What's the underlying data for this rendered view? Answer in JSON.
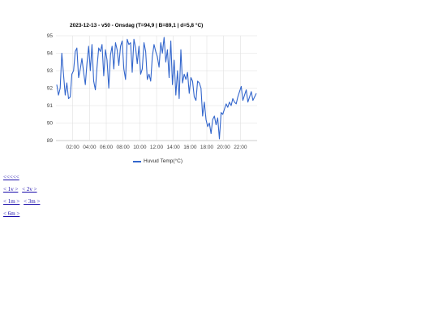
{
  "chart_data": {
    "type": "line",
    "title": "2023-12-13 - v50 - Onsdag (T=94,9 | B=89,1 | d=5,8 °C)",
    "xlabel": "",
    "ylabel": "",
    "ylim": [
      89,
      95
    ],
    "yticks": [
      "95",
      "94",
      "93",
      "92",
      "91",
      "90",
      "89"
    ],
    "xlim": [
      0,
      24
    ],
    "xticks": [
      {
        "at": 2,
        "label": "02:00"
      },
      {
        "at": 4,
        "label": "04:00"
      },
      {
        "at": 6,
        "label": "06:00"
      },
      {
        "at": 8,
        "label": "08:00"
      },
      {
        "at": 10,
        "label": "10:00"
      },
      {
        "at": 12,
        "label": "12:00"
      },
      {
        "at": 14,
        "label": "14:00"
      },
      {
        "at": 16,
        "label": "16:00"
      },
      {
        "at": 18,
        "label": "18:00"
      },
      {
        "at": 20,
        "label": "20:00"
      },
      {
        "at": 22,
        "label": "22:00"
      }
    ],
    "grid": true,
    "legend_position": "bottom",
    "series": [
      {
        "name": "Huvud Temp(°C)",
        "color": "#3366cc",
        "x": [
          0.1,
          0.3,
          0.5,
          0.7,
          0.9,
          1.1,
          1.3,
          1.5,
          1.7,
          1.9,
          2.1,
          2.3,
          2.5,
          2.7,
          2.9,
          3.1,
          3.3,
          3.5,
          3.7,
          3.9,
          4.1,
          4.3,
          4.5,
          4.7,
          4.9,
          5.1,
          5.3,
          5.5,
          5.7,
          5.9,
          6.1,
          6.3,
          6.5,
          6.7,
          6.9,
          7.1,
          7.3,
          7.5,
          7.7,
          7.9,
          8.1,
          8.3,
          8.5,
          8.7,
          8.9,
          9.1,
          9.3,
          9.5,
          9.7,
          9.9,
          10.1,
          10.3,
          10.5,
          10.7,
          10.9,
          11.1,
          11.3,
          11.5,
          11.7,
          11.9,
          12.1,
          12.3,
          12.5,
          12.7,
          12.9,
          13.1,
          13.3,
          13.5,
          13.7,
          13.9,
          14.1,
          14.3,
          14.5,
          14.7,
          14.9,
          15.1,
          15.3,
          15.5,
          15.7,
          15.9,
          16.1,
          16.3,
          16.5,
          16.7,
          16.9,
          17.1,
          17.3,
          17.5,
          17.7,
          17.9,
          18.1,
          18.3,
          18.5,
          18.7,
          18.9,
          19.1,
          19.3,
          19.5,
          19.7,
          19.9,
          20.1,
          20.3,
          20.5,
          20.7,
          20.9,
          21.1,
          21.3,
          21.5,
          21.7,
          21.9,
          22.1,
          22.3,
          22.5,
          22.7,
          22.9,
          23.1,
          23.3,
          23.5,
          23.7,
          23.9
        ],
        "y": [
          92.2,
          91.6,
          92.0,
          94.0,
          92.8,
          91.6,
          92.3,
          91.4,
          91.5,
          92.8,
          93.0,
          94.1,
          94.3,
          92.6,
          93.1,
          93.7,
          92.9,
          92.2,
          93.4,
          94.4,
          93.0,
          94.5,
          92.4,
          91.9,
          93.2,
          94.3,
          94.1,
          94.5,
          92.7,
          94.2,
          93.6,
          92.0,
          93.9,
          94.4,
          93.1,
          94.6,
          94.2,
          93.3,
          94.4,
          94.7,
          93.1,
          92.5,
          94.8,
          94.5,
          94.6,
          92.9,
          94.8,
          94.3,
          93.4,
          94.4,
          92.8,
          93.1,
          94.6,
          94.1,
          92.5,
          92.8,
          92.4,
          93.8,
          94.5,
          94.1,
          93.8,
          93.2,
          94.6,
          94.0,
          94.9,
          93.5,
          94.2,
          92.6,
          94.7,
          92.2,
          93.6,
          91.6,
          93.0,
          91.4,
          94.2,
          92.3,
          92.8,
          92.5,
          92.9,
          91.7,
          92.6,
          92.4,
          91.5,
          91.3,
          92.4,
          92.3,
          92.0,
          90.4,
          91.2,
          90.2,
          89.8,
          90.0,
          89.4,
          90.2,
          90.4,
          89.9,
          90.3,
          89.1,
          90.6,
          90.5,
          90.8,
          91.1,
          90.9,
          91.2,
          91.0,
          91.4,
          91.2,
          91.1,
          91.5,
          91.8,
          92.1,
          91.3,
          91.6,
          91.9,
          91.2,
          91.5,
          91.8,
          91.3,
          91.5,
          91.7
        ]
      }
    ]
  },
  "nav": {
    "row1": [
      "<<<<<"
    ],
    "row2": [
      "< 1v >",
      "< 2v >"
    ],
    "row3": [
      "< 1m >",
      "< 3m >"
    ],
    "row4": [
      "< 6m >"
    ]
  }
}
